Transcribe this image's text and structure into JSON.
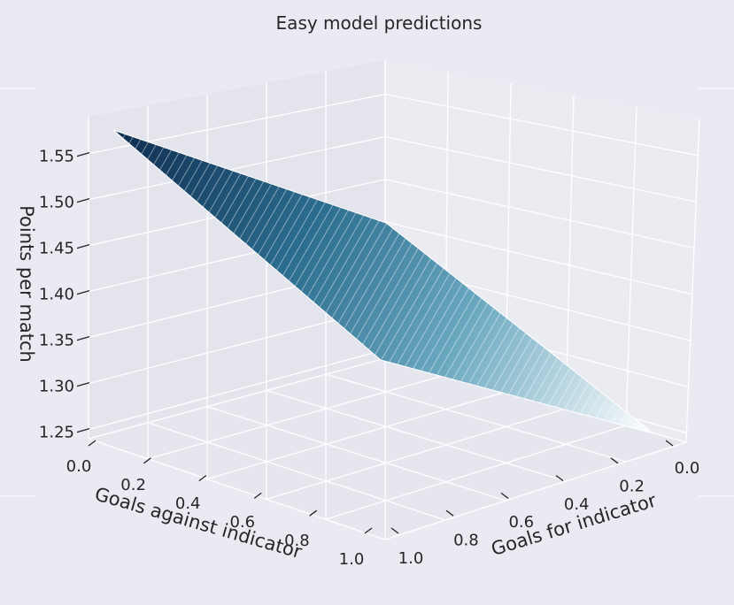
{
  "chart_data": {
    "type": "surface",
    "title": "Easy model predictions",
    "xlabel": "Goals against indicator",
    "ylabel": "Goals for indicator",
    "zlabel": "Points per match",
    "xticks": [
      "0.0",
      "0.2",
      "0.4",
      "0.6",
      "0.8",
      "1.0"
    ],
    "yticks": [
      "0.0",
      "0.2",
      "0.4",
      "0.6",
      "0.8",
      "1.0"
    ],
    "zticks": [
      "1.25",
      "1.30",
      "1.35",
      "1.40",
      "1.45",
      "1.50",
      "1.55"
    ],
    "xlim": [
      0,
      1
    ],
    "ylim": [
      0,
      1
    ],
    "zlim": [
      1.24,
      1.59
    ],
    "corners": [
      {
        "goals_against": 0,
        "goals_for": 1,
        "points": 1.59
      },
      {
        "goals_against": 1,
        "goals_for": 1,
        "points": 1.35
      },
      {
        "goals_against": 1,
        "goals_for": 0,
        "points": 1.24
      },
      {
        "goals_against": 0,
        "goals_for": 0,
        "points": 1.48
      }
    ],
    "colormap": [
      "#0d2b4e",
      "#2b6c8e",
      "#6aa8c0",
      "#ffffff"
    ]
  }
}
